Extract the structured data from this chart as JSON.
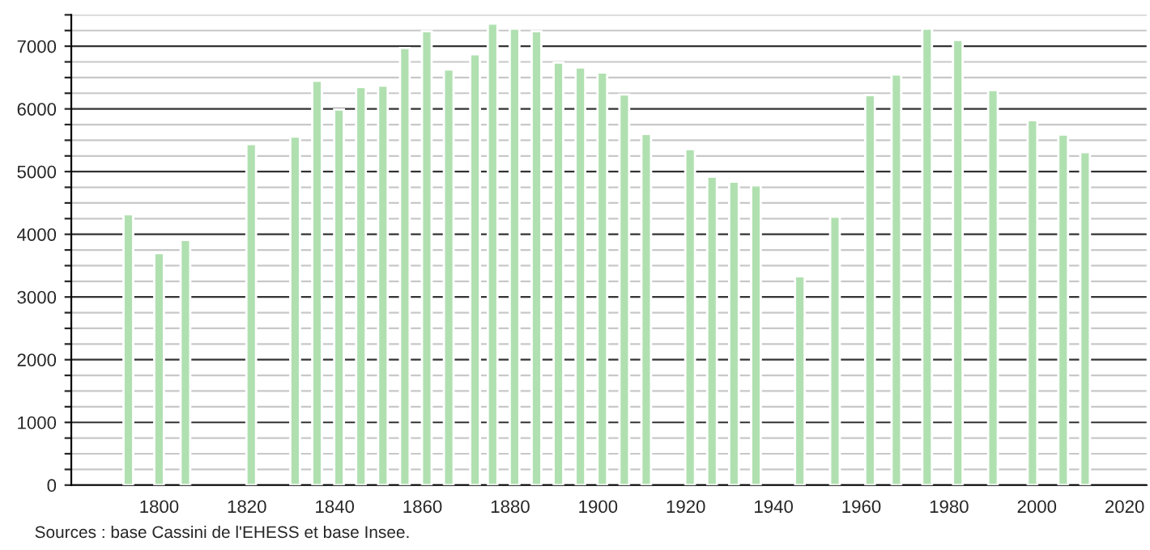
{
  "chart_data": {
    "type": "bar",
    "x": [
      1793,
      1800,
      1806,
      1821,
      1831,
      1836,
      1841,
      1846,
      1851,
      1856,
      1861,
      1866,
      1872,
      1876,
      1881,
      1886,
      1891,
      1896,
      1901,
      1906,
      1911,
      1921,
      1926,
      1931,
      1936,
      1946,
      1954,
      1962,
      1968,
      1975,
      1982,
      1990,
      1999,
      2006,
      2011
    ],
    "values": [
      4320,
      3700,
      3910,
      5440,
      5560,
      6450,
      5990,
      6350,
      6370,
      6970,
      7240,
      6630,
      6870,
      7360,
      7280,
      7240,
      6740,
      6660,
      6580,
      6230,
      5600,
      5360,
      4920,
      4840,
      4780,
      3330,
      4280,
      6220,
      6550,
      7280,
      7100,
      6300,
      5820,
      5590,
      5310
    ],
    "color": "#b0e0b0",
    "xlim": [
      1780,
      2025
    ],
    "xticks": [
      1800,
      1820,
      1840,
      1860,
      1880,
      1900,
      1920,
      1940,
      1960,
      1980,
      2000,
      2020
    ],
    "ylim": [
      0,
      7500
    ],
    "yticks": [
      0,
      {
        "value": 250,
        "label": null
      },
      {
        "value": 500,
        "label": null
      },
      {
        "value": 750,
        "label": null
      },
      1000,
      {
        "value": 1250,
        "label": null
      },
      {
        "value": 1500,
        "label": null
      },
      {
        "value": 1750,
        "label": null
      },
      2000,
      {
        "value": 2250,
        "label": null
      },
      {
        "value": 2500,
        "label": null
      },
      {
        "value": 2750,
        "label": null
      },
      3000,
      {
        "value": 3250,
        "label": null
      },
      {
        "value": 3500,
        "label": null
      },
      {
        "value": 3750,
        "label": null
      },
      4000,
      {
        "value": 4250,
        "label": null
      },
      {
        "value": 4500,
        "label": null
      },
      {
        "value": 4750,
        "label": null
      },
      5000,
      {
        "value": 5250,
        "label": null
      },
      {
        "value": 5500,
        "label": null
      },
      {
        "value": 5750,
        "label": null
      },
      6000,
      {
        "value": 6250,
        "label": null
      },
      {
        "value": 6500,
        "label": null
      },
      {
        "value": 6750,
        "label": null
      },
      7000,
      {
        "value": 7250,
        "label": null
      },
      {
        "value": 7500,
        "label": null
      }
    ],
    "grid": "y",
    "annotations": [
      "Sources : base Cassini de l'EHESS et base Insee."
    ]
  }
}
